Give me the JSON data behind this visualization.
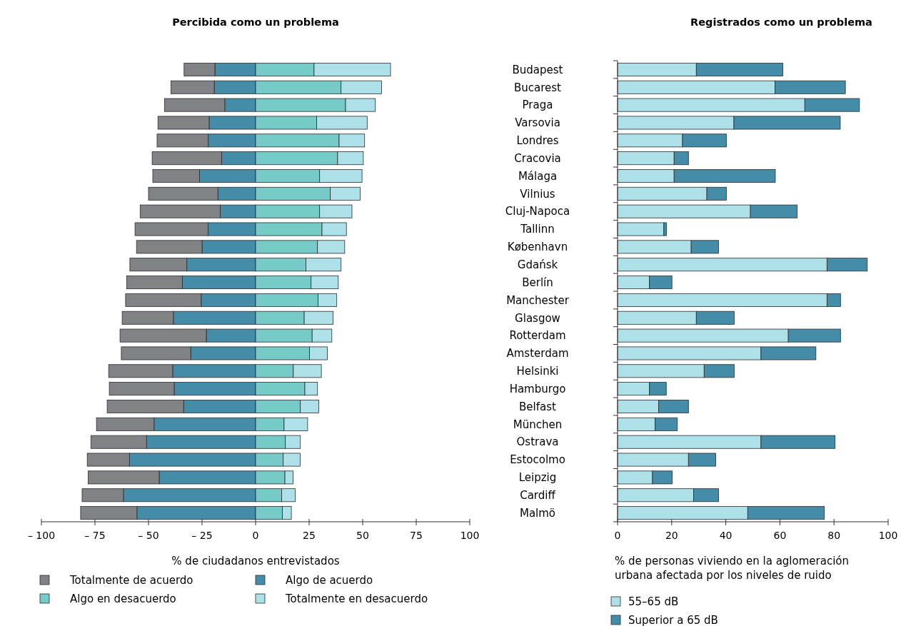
{
  "chart_data": [
    {
      "type": "bar",
      "orientation": "horizontal",
      "stacked": true,
      "title": "Percibida como un problema",
      "xlabel": "% de ciudadanos entrevistados",
      "tick_labels": "x",
      "legend": "bottom",
      "categories": [
        "Budapest",
        "Bucarest",
        "Praga",
        "Varsovia",
        "Londres",
        "Cracovia",
        "Málaga",
        "Vilnius",
        "Cluj-Napoca",
        "Tallinn",
        "København",
        "Gdańsk",
        "Berlín",
        "Manchester",
        "Glasgow",
        "Rotterdam",
        "Amsterdam",
        "Helsinki",
        "Hamburgo",
        "Belfast",
        "München",
        "Ostrava",
        "Estocolmo",
        "Leipzig",
        "Cardiff",
        "Malmö"
      ],
      "xlim": [
        -100,
        100
      ],
      "xticks": [
        {
          "value": -100,
          "label": "– 100"
        },
        {
          "value": -75,
          "label": "– 75"
        },
        {
          "value": -50,
          "label": "– 50"
        },
        {
          "value": -25,
          "label": "– 25"
        },
        0,
        25,
        50,
        75,
        100
      ],
      "series": [
        {
          "name": "Algo de acuerdo",
          "color": "#448ca8",
          "values": [
            -19,
            -19.3,
            -14.4,
            -21.7,
            -22.1,
            -15.9,
            -26.2,
            -17.6,
            -16.5,
            -22.2,
            -25,
            -32.1,
            -34.2,
            -25.4,
            -38.4,
            -23,
            -30.3,
            -38.7,
            -38,
            -33.6,
            -47.4,
            -50.9,
            -58.9,
            -45,
            -61.7,
            -55.4
          ]
        },
        {
          "name": "Totalmente de acuerdo",
          "color": "#808285",
          "values": [
            -14.4,
            -20.2,
            -28.1,
            -23.9,
            -23.9,
            -32.4,
            -21.8,
            -32.4,
            -37.4,
            -34.1,
            -30.6,
            -26.6,
            -26,
            -35.3,
            -23.9,
            -40.3,
            -32.4,
            -29.9,
            -30.3,
            -35.7,
            -26.9,
            -26,
            -19.7,
            -33.2,
            -19.3,
            -26.3
          ]
        },
        {
          "name": "Algo en desacuerdo",
          "color": "#76cbc8",
          "values": [
            27.3,
            39.9,
            42,
            28.5,
            39,
            38.3,
            29.9,
            34.9,
            29.9,
            31,
            28.9,
            23.5,
            25.9,
            29.2,
            22.7,
            26.4,
            25.2,
            17.6,
            23,
            20.9,
            13.3,
            13.9,
            12.9,
            13.7,
            12.2,
            12.5
          ]
        },
        {
          "name": "Totalmente en desacuerdo",
          "color": "#aee0ea",
          "values": [
            35.7,
            18.9,
            13.9,
            23.6,
            11.9,
            12,
            19.8,
            13.9,
            15.1,
            11.4,
            12.7,
            16.4,
            12.7,
            8.7,
            13.5,
            9.2,
            8.3,
            13.1,
            5.9,
            8.6,
            11,
            7,
            7.9,
            3.8,
            6.3,
            4.2
          ]
        }
      ]
    },
    {
      "type": "bar",
      "orientation": "horizontal",
      "stacked": true,
      "title": "Registrados como un problema",
      "xlabel": "% de personas viviendo en la aglomeración urbana afectada por los niveles de ruido",
      "legend": "bottom",
      "categories": [
        "Budapest",
        "Bucarest",
        "Praga",
        "Varsovia",
        "Londres",
        "Cracovia",
        "Málaga",
        "Vilnius",
        "Cluj-Napoca",
        "Tallinn",
        "København",
        "Gdańsk",
        "Berlín",
        "Manchester",
        "Glasgow",
        "Rotterdam",
        "Amsterdam",
        "Helsinki",
        "Hamburgo",
        "Belfast",
        "München",
        "Ostrava",
        "Estocolmo",
        "Leipzig",
        "Cardiff",
        "Malmö"
      ],
      "xlim": [
        0,
        100
      ],
      "xticks": [
        0,
        20,
        40,
        60,
        80,
        100
      ],
      "series": [
        {
          "name": "55–65 dB",
          "color": "#aee0ea",
          "values": [
            29.1,
            58.2,
            69.2,
            43,
            24,
            20.9,
            20.9,
            33,
            49.1,
            17.1,
            27.2,
            77.4,
            11.8,
            77.4,
            29.1,
            63.1,
            53,
            32,
            11.8,
            15.2,
            13.9,
            53,
            26.2,
            12.9,
            28.1,
            48.1
          ]
        },
        {
          "name": "Superior a 65 dB",
          "color": "#448ca8",
          "values": [
            32,
            26,
            20.2,
            39.3,
            16.2,
            5.3,
            37.4,
            7.2,
            17.3,
            1,
            10.1,
            14.9,
            8.3,
            5,
            14,
            19.3,
            20.3,
            11.1,
            6.2,
            11,
            8.2,
            27.4,
            10.1,
            7.3,
            9.2,
            28.3
          ]
        }
      ]
    }
  ]
}
